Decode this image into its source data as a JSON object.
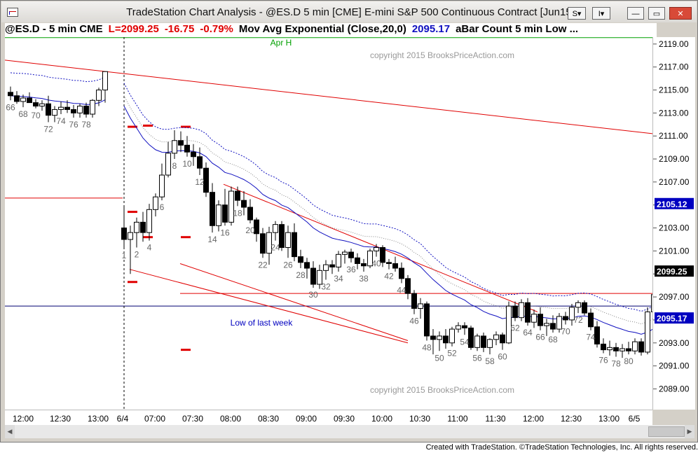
{
  "window": {
    "title": "TradeStation Chart Analysis - @ES.D 5 min [CME] E-mini S&P 500 Continuous Contract [Jun15]",
    "buttons": {
      "s_label": "S",
      "i_label": "I",
      "minimize": "—",
      "maximize": "▭",
      "close": "✕"
    }
  },
  "header": {
    "symbol": "@ES.D - 5 min  CME",
    "last": "L=2099.25",
    "change": "-16.75",
    "pct": "-0.79%",
    "study": "Mov Avg Exponential (Close,20,0)",
    "study_value": "2095.17",
    "study2": "aBar Count 5 min Low  ..."
  },
  "colors": {
    "last_red": "#e00000",
    "ema_blue": "#1010c0",
    "trend_red": "#e00000",
    "green": "#00a000"
  },
  "annotations": {
    "copyright_top": "copyright 2015 BrooksPriceAction.com",
    "copyright_bottom": "copyright 2015 BrooksPriceAction.com",
    "apr_high": "Apr H",
    "low_last_week": "Low of last week"
  },
  "footer": "Created with TradeStation. ©TradeStation Technologies, Inc. All rights reserved.",
  "chart_data": {
    "type": "candlestick",
    "yticks": [
      "2119.00",
      "2117.00",
      "2115.00",
      "2113.00",
      "2111.00",
      "2109.00",
      "2107.00",
      "2105.00",
      "2103.00",
      "2101.00",
      "2099.00",
      "2097.00",
      "2095.00",
      "2093.00",
      "2091.00",
      "2089.00"
    ],
    "ytick_values": [
      2119,
      2117,
      2115,
      2113,
      2111,
      2109,
      2107,
      2105,
      2103,
      2101,
      2099,
      2097,
      2095,
      2093,
      2091,
      2089
    ],
    "ylim": [
      2087.2,
      2119.6
    ],
    "price_flags": [
      {
        "label": "2105.12",
        "value": 2105.12,
        "color": "#0000c0"
      },
      {
        "label": "2099.25",
        "value": 2099.25,
        "color": "#000000"
      },
      {
        "label": "2095.17",
        "value": 2095.17,
        "color": "#0000c0"
      }
    ],
    "xticks": [
      "12:00",
      "12:30",
      "13:00",
      "6/4",
      "07:00",
      "07:30",
      "08:00",
      "08:30",
      "09:00",
      "09:30",
      "10:00",
      "10:30",
      "11:00",
      "11:30",
      "12:00",
      "12:30",
      "13:00",
      "6/5"
    ],
    "bar_labels": [
      "66",
      "68",
      "70",
      "72",
      "74",
      "76",
      "78",
      "1",
      "2",
      "4",
      "6",
      "8",
      "10",
      "12",
      "14",
      "16",
      "18",
      "20",
      "22",
      "24",
      "26",
      "28",
      "30",
      "32",
      "34",
      "36",
      "38",
      "40",
      "42",
      "44",
      "46",
      "48",
      "50",
      "52",
      "54",
      "56",
      "58",
      "60",
      "62",
      "64",
      "66",
      "68",
      "70",
      "72",
      "74",
      "76",
      "78",
      "80"
    ],
    "bars": [
      [
        2114.8,
        2115.3,
        2114.1,
        2114.5
      ],
      [
        2114.5,
        2114.9,
        2113.8,
        2114.0
      ],
      [
        2114.0,
        2114.6,
        2113.5,
        2114.3
      ],
      [
        2114.3,
        2114.8,
        2113.9,
        2113.9
      ],
      [
        2113.9,
        2114.2,
        2113.4,
        2113.6
      ],
      [
        2113.6,
        2114.1,
        2113.2,
        2113.8
      ],
      [
        2113.8,
        2114.5,
        2112.2,
        2112.8
      ],
      [
        2112.8,
        2113.6,
        2112.2,
        2113.3
      ],
      [
        2113.3,
        2114.0,
        2112.9,
        2113.5
      ],
      [
        2113.5,
        2114.1,
        2113.0,
        2113.3
      ],
      [
        2113.3,
        2113.7,
        2112.6,
        2113.0
      ],
      [
        2113.0,
        2113.8,
        2112.6,
        2113.6
      ],
      [
        2113.6,
        2113.9,
        2112.6,
        2112.9
      ],
      [
        2112.9,
        2114.2,
        2112.6,
        2114.1
      ],
      [
        2114.1,
        2115.2,
        2113.6,
        2115.0
      ],
      [
        2115.0,
        2116.6,
        2113.9,
        2116.6
      ],
      [
        2103.0,
        2104.8,
        2101.2,
        2102.0
      ],
      [
        2102.0,
        2103.2,
        2099.0,
        2102.6
      ],
      [
        2102.6,
        2103.9,
        2101.3,
        2103.5
      ],
      [
        2103.5,
        2104.4,
        2101.8,
        2102.6
      ],
      [
        2102.6,
        2105.1,
        2101.9,
        2104.6
      ],
      [
        2104.6,
        2106.0,
        2104.0,
        2105.7
      ],
      [
        2105.7,
        2108.6,
        2105.4,
        2107.6
      ],
      [
        2107.6,
        2110.5,
        2107.4,
        2109.5
      ],
      [
        2109.5,
        2111.5,
        2109.0,
        2110.6
      ],
      [
        2110.6,
        2111.4,
        2109.6,
        2110.2
      ],
      [
        2110.2,
        2111.0,
        2109.2,
        2109.6
      ],
      [
        2109.6,
        2110.3,
        2108.4,
        2109.2
      ],
      [
        2109.2,
        2110.0,
        2107.6,
        2108.2
      ],
      [
        2108.2,
        2108.7,
        2105.7,
        2106.1
      ],
      [
        2106.1,
        2106.9,
        2102.6,
        2103.2
      ],
      [
        2103.2,
        2105.4,
        2102.7,
        2105.0
      ],
      [
        2105.0,
        2106.4,
        2103.2,
        2103.5
      ],
      [
        2103.5,
        2106.6,
        2103.2,
        2106.2
      ],
      [
        2106.2,
        2106.6,
        2104.9,
        2105.4
      ],
      [
        2105.4,
        2106.2,
        2104.1,
        2104.8
      ],
      [
        2104.8,
        2105.5,
        2103.4,
        2103.7
      ],
      [
        2103.7,
        2103.9,
        2101.8,
        2102.5
      ],
      [
        2102.5,
        2103.0,
        2100.4,
        2100.8
      ],
      [
        2100.8,
        2103.1,
        2099.8,
        2102.6
      ],
      [
        2102.6,
        2103.6,
        2101.9,
        2103.3
      ],
      [
        2103.3,
        2103.6,
        2101.0,
        2101.3
      ],
      [
        2101.3,
        2103.2,
        2100.4,
        2102.6
      ],
      [
        2102.6,
        2103.4,
        2100.1,
        2100.5
      ],
      [
        2100.5,
        2101.1,
        2099.5,
        2100.0
      ],
      [
        2100.0,
        2100.4,
        2098.6,
        2099.5
      ],
      [
        2099.5,
        2100.1,
        2097.8,
        2098.1
      ],
      [
        2098.1,
        2099.8,
        2097.7,
        2099.3
      ],
      [
        2099.3,
        2100.2,
        2098.5,
        2099.8
      ],
      [
        2099.8,
        2100.2,
        2099.0,
        2099.6
      ],
      [
        2099.6,
        2101.0,
        2099.2,
        2100.7
      ],
      [
        2100.7,
        2101.1,
        2099.9,
        2100.9
      ],
      [
        2100.9,
        2101.2,
        2100.0,
        2100.4
      ],
      [
        2100.4,
        2100.8,
        2099.4,
        2099.9
      ],
      [
        2099.9,
        2100.3,
        2099.2,
        2099.7
      ],
      [
        2099.7,
        2101.2,
        2099.5,
        2101.0
      ],
      [
        2101.0,
        2101.6,
        2100.5,
        2101.3
      ],
      [
        2101.3,
        2101.5,
        2099.6,
        2100.0
      ],
      [
        2100.0,
        2100.3,
        2099.4,
        2099.9
      ],
      [
        2099.9,
        2100.5,
        2099.2,
        2099.5
      ],
      [
        2099.5,
        2100.0,
        2098.2,
        2098.6
      ],
      [
        2098.6,
        2098.9,
        2096.8,
        2097.3
      ],
      [
        2097.3,
        2097.6,
        2095.5,
        2096.0
      ],
      [
        2096.0,
        2096.9,
        2095.1,
        2096.4
      ],
      [
        2096.4,
        2096.6,
        2093.2,
        2093.6
      ],
      [
        2093.6,
        2094.2,
        2092.0,
        2093.3
      ],
      [
        2093.3,
        2094.0,
        2092.3,
        2093.6
      ],
      [
        2093.6,
        2094.2,
        2092.5,
        2093.0
      ],
      [
        2093.0,
        2094.4,
        2092.7,
        2094.2
      ],
      [
        2094.2,
        2094.8,
        2093.9,
        2094.5
      ],
      [
        2094.5,
        2094.8,
        2093.7,
        2094.3
      ],
      [
        2094.3,
        2094.5,
        2092.4,
        2092.6
      ],
      [
        2092.6,
        2093.8,
        2092.3,
        2093.6
      ],
      [
        2093.6,
        2093.9,
        2092.2,
        2092.6
      ],
      [
        2092.6,
        2093.4,
        2092.0,
        2093.3
      ],
      [
        2093.3,
        2094.0,
        2092.8,
        2093.7
      ],
      [
        2093.7,
        2093.9,
        2092.4,
        2093.0
      ],
      [
        2093.0,
        2096.6,
        2092.9,
        2096.2
      ],
      [
        2096.2,
        2096.6,
        2094.9,
        2095.2
      ],
      [
        2095.2,
        2096.8,
        2094.9,
        2096.5
      ],
      [
        2096.5,
        2096.9,
        2094.5,
        2094.8
      ],
      [
        2094.8,
        2095.9,
        2094.3,
        2095.5
      ],
      [
        2095.5,
        2096.1,
        2094.1,
        2094.5
      ],
      [
        2094.5,
        2095.1,
        2093.6,
        2094.7
      ],
      [
        2094.7,
        2095.4,
        2093.9,
        2094.2
      ],
      [
        2094.2,
        2095.6,
        2093.9,
        2095.3
      ],
      [
        2095.3,
        2095.7,
        2094.6,
        2095.0
      ],
      [
        2095.0,
        2096.4,
        2094.5,
        2096.1
      ],
      [
        2096.1,
        2096.7,
        2095.6,
        2096.5
      ],
      [
        2096.5,
        2096.7,
        2095.4,
        2095.6
      ],
      [
        2095.6,
        2096.0,
        2094.1,
        2094.4
      ],
      [
        2094.4,
        2094.9,
        2092.6,
        2092.9
      ],
      [
        2092.9,
        2093.4,
        2092.1,
        2092.4
      ],
      [
        2092.4,
        2093.2,
        2091.9,
        2092.6
      ],
      [
        2092.6,
        2093.0,
        2091.8,
        2092.3
      ],
      [
        2092.3,
        2092.9,
        2091.7,
        2092.5
      ],
      [
        2092.5,
        2093.1,
        2092.0,
        2092.3
      ],
      [
        2092.3,
        2093.4,
        2092.0,
        2093.1
      ],
      [
        2093.1,
        2093.4,
        2091.9,
        2092.2
      ],
      [
        2092.2,
        2096.1,
        2092.0,
        2095.7
      ],
      [
        2095.7,
        2097.4,
        2095.5,
        2097.2
      ],
      [
        2097.2,
        2098.3,
        2096.9,
        2098.0
      ],
      [
        2098.0,
        2099.5,
        2097.8,
        2099.25
      ]
    ]
  }
}
